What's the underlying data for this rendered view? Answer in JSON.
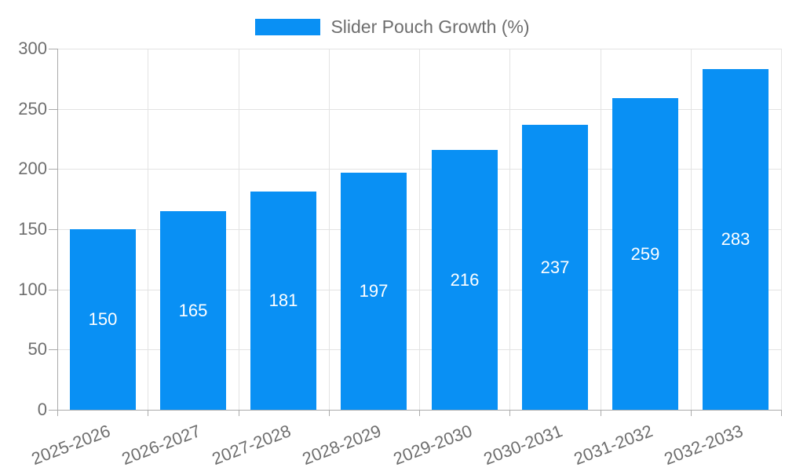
{
  "chart_data": {
    "type": "bar",
    "title": "",
    "legend": "Slider Pouch Growth (%)",
    "legend_position": "top-center",
    "categories": [
      "2025-2026",
      "2026-2027",
      "2027-2028",
      "2028-2029",
      "2029-2030",
      "2030-2031",
      "2031-2032",
      "2032-2033"
    ],
    "series": [
      {
        "name": "Slider Pouch Growth (%)",
        "values": [
          150,
          165,
          181,
          197,
          216,
          237,
          259,
          283
        ]
      }
    ],
    "values": [
      150,
      165,
      181,
      197,
      216,
      237,
      259,
      283
    ],
    "bar_value_labels": [
      "150",
      "165",
      "181",
      "197",
      "216",
      "237",
      "259",
      "283"
    ],
    "xlabel": "",
    "ylabel": "",
    "ylim": [
      0,
      300
    ],
    "yticks": [
      0,
      50,
      100,
      150,
      200,
      250,
      300
    ],
    "grid": true
  },
  "colors": {
    "bar": "#0990f4",
    "grid": "#e3e3e3",
    "axis": "#ababab",
    "tick_text": "#6e6e6e",
    "legend_text": "#6e6e6e",
    "bar_label_text": "#ffffff",
    "background": "#ffffff"
  }
}
